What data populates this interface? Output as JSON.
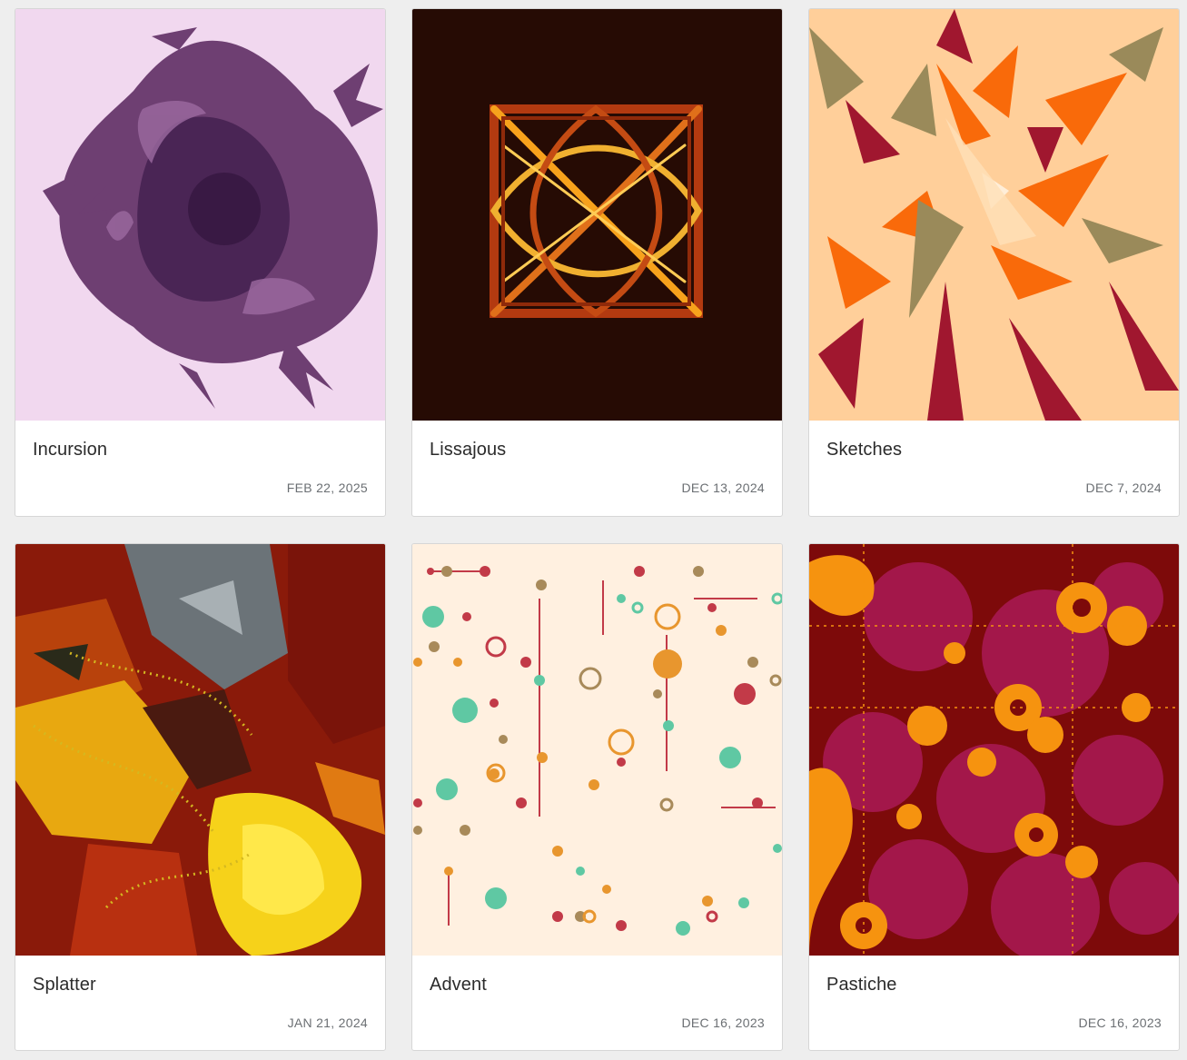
{
  "gallery": {
    "items": [
      {
        "title": "Incursion",
        "date": "FEB 22, 2025",
        "art": "incursion-artwork"
      },
      {
        "title": "Lissajous",
        "date": "DEC 13, 2024",
        "art": "lissajous-artwork"
      },
      {
        "title": "Sketches",
        "date": "DEC 7, 2024",
        "art": "sketches-artwork"
      },
      {
        "title": "Splatter",
        "date": "JAN 21, 2024",
        "art": "splatter-artwork"
      },
      {
        "title": "Advent",
        "date": "DEC 16, 2023",
        "art": "advent-artwork"
      },
      {
        "title": "Pastiche",
        "date": "DEC 16, 2023",
        "art": "pastiche-artwork"
      }
    ]
  },
  "colors": {
    "page_bg": "#eeeeee",
    "card_bg": "#ffffff",
    "title": "#2b2b2b",
    "date": "#6b6f73"
  }
}
